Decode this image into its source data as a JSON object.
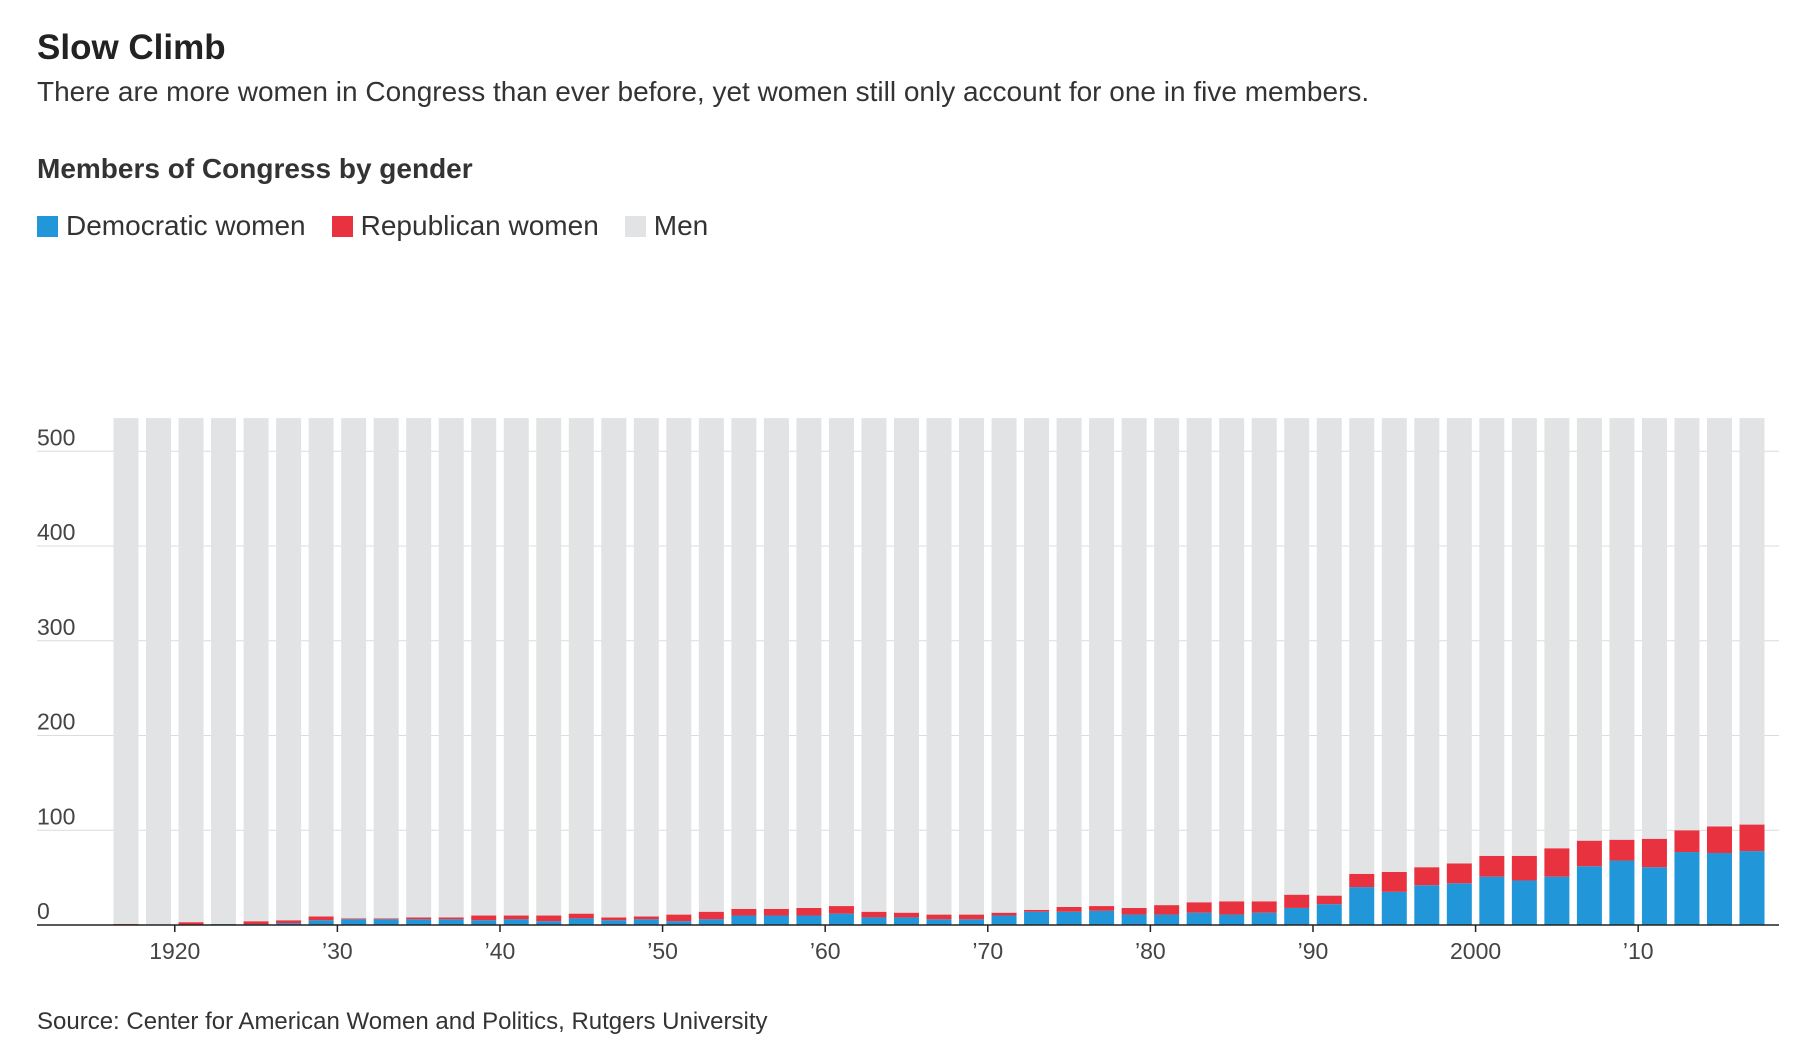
{
  "header": {
    "title": "Slow Climb",
    "subtitle": "There are more women in Congress than ever before, yet women still only account for one in five members.",
    "chart_title": "Members of Congress by gender"
  },
  "legend": [
    {
      "label": "Democratic women",
      "color": "#2196d8"
    },
    {
      "label": "Republican women",
      "color": "#e8323f"
    },
    {
      "label": "Men",
      "color": "#e2e3e4"
    }
  ],
  "source": "Source: Center for American Women and Politics, Rutgers University",
  "chart_data": {
    "type": "bar",
    "stacked": true,
    "ylim": [
      0,
      535
    ],
    "yticks": [
      0,
      100,
      200,
      300,
      400,
      500
    ],
    "xtick_labels": [
      {
        "year": 1920,
        "label": "1920"
      },
      {
        "year": 1930,
        "label": "’30"
      },
      {
        "year": 1940,
        "label": "’40"
      },
      {
        "year": 1950,
        "label": "’50"
      },
      {
        "year": 1960,
        "label": "’60"
      },
      {
        "year": 1970,
        "label": "’70"
      },
      {
        "year": 1980,
        "label": "’80"
      },
      {
        "year": 1990,
        "label": "’90"
      },
      {
        "year": 2000,
        "label": "2000"
      },
      {
        "year": 2010,
        "label": "’10"
      }
    ],
    "total_members": 535,
    "categories": [
      1917,
      1919,
      1921,
      1923,
      1925,
      1927,
      1929,
      1931,
      1933,
      1935,
      1937,
      1939,
      1941,
      1943,
      1945,
      1947,
      1949,
      1951,
      1953,
      1955,
      1957,
      1959,
      1961,
      1963,
      1965,
      1967,
      1969,
      1971,
      1973,
      1975,
      1977,
      1979,
      1981,
      1983,
      1985,
      1987,
      1989,
      1991,
      1993,
      1995,
      1997,
      1999,
      2001,
      2003,
      2005,
      2007,
      2009,
      2011,
      2013,
      2015,
      2017
    ],
    "series": [
      {
        "name": "Democratic women",
        "color": "#2196d8",
        "values": [
          0,
          0,
          0,
          1,
          1,
          2,
          5,
          6,
          6,
          6,
          6,
          5,
          6,
          4,
          7,
          5,
          6,
          4,
          6,
          10,
          10,
          10,
          12,
          8,
          8,
          6,
          6,
          10,
          14,
          14,
          15,
          11,
          11,
          13,
          11,
          13,
          18,
          22,
          40,
          35,
          42,
          44,
          51,
          47,
          51,
          62,
          68,
          61,
          77,
          76,
          78
        ]
      },
      {
        "name": "Republican women",
        "color": "#e8323f",
        "values": [
          1,
          0,
          3,
          0,
          3,
          3,
          4,
          1,
          1,
          2,
          2,
          5,
          4,
          6,
          5,
          3,
          3,
          7,
          8,
          7,
          7,
          8,
          8,
          6,
          5,
          5,
          5,
          3,
          2,
          5,
          5,
          7,
          10,
          11,
          14,
          12,
          14,
          9,
          14,
          21,
          19,
          21,
          22,
          26,
          30,
          27,
          22,
          30,
          23,
          28,
          28
        ]
      },
      {
        "name": "Men",
        "values": [
          534,
          535,
          532,
          534,
          531,
          530,
          526,
          528,
          528,
          527,
          527,
          525,
          525,
          525,
          523,
          527,
          526,
          524,
          521,
          518,
          518,
          517,
          515,
          521,
          522,
          524,
          524,
          522,
          519,
          516,
          515,
          517,
          514,
          511,
          510,
          510,
          503,
          504,
          481,
          479,
          474,
          470,
          462,
          462,
          454,
          446,
          445,
          444,
          435,
          431,
          429
        ]
      }
    ]
  }
}
